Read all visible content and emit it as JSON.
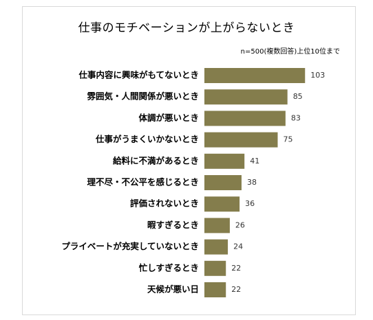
{
  "chart_data": {
    "type": "bar",
    "orientation": "horizontal",
    "title": "仕事のモチベーションが上がらないとき",
    "note": "n=500(複数回答)上位10位まで",
    "categories": [
      "仕事内容に興味がもてないとき",
      "雰囲気・人間関係が悪いとき",
      "体調が悪いとき",
      "仕事がうまくいかないとき",
      "給料に不満があるとき",
      "理不尽・不公平を感じるとき",
      "評価されないとき",
      "暇すぎるとき",
      "プライベートが充実していないとき",
      "忙しすぎるとき",
      "天候が悪い日"
    ],
    "values": [
      103,
      85,
      83,
      75,
      41,
      38,
      36,
      26,
      24,
      22,
      22
    ],
    "bar_color": "#847d4c",
    "grid": false,
    "legend": "none"
  }
}
